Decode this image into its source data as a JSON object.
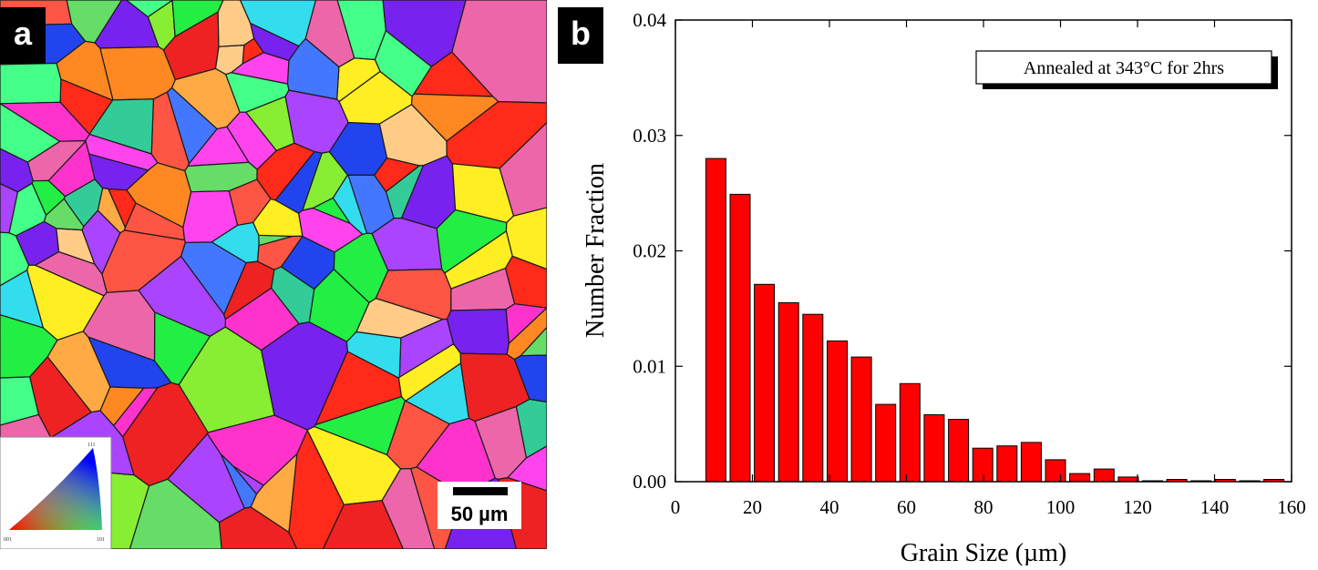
{
  "panel_a": {
    "label": "a",
    "scale_bar_label": "50 µm",
    "ipf_legend": {
      "corner_top": "111",
      "corner_left": "001",
      "corner_right": "101"
    },
    "colors": {
      "grain_boundary": "#1a1a1a",
      "scale_bar": "#000000"
    }
  },
  "panel_b": {
    "label": "b",
    "annotation": "Annealed at 343°C for 2hrs"
  },
  "chart_data": {
    "type": "bar",
    "xlabel": "Grain Size (µm)",
    "ylabel": "Number Fraction",
    "xlim": [
      0,
      160
    ],
    "ylim": [
      0,
      0.04
    ],
    "xticks": [
      0,
      20,
      40,
      60,
      80,
      100,
      120,
      140,
      160
    ],
    "yticks": [
      0.0,
      0.01,
      0.02,
      0.03,
      0.04
    ],
    "ytick_labels": [
      "0.00",
      "0.01",
      "0.02",
      "0.03",
      "0.04"
    ],
    "bar_color": "#ff0000",
    "x": [
      10.5,
      16.8,
      23.1,
      29.4,
      35.7,
      42.0,
      48.3,
      54.6,
      60.9,
      67.2,
      73.5,
      79.8,
      86.1,
      92.4,
      98.7,
      105.0,
      111.3,
      117.6,
      123.9,
      130.2,
      136.5,
      142.8,
      149.1,
      155.4
    ],
    "values": [
      0.028,
      0.0249,
      0.0171,
      0.0155,
      0.0145,
      0.0122,
      0.0108,
      0.0067,
      0.0085,
      0.0058,
      0.0054,
      0.0029,
      0.0031,
      0.0034,
      0.0019,
      0.0007,
      0.0011,
      0.0004,
      0.0,
      0.0002,
      0.0,
      0.0002,
      0.0,
      0.0002
    ],
    "bar_width": 5.2,
    "grid": false
  }
}
